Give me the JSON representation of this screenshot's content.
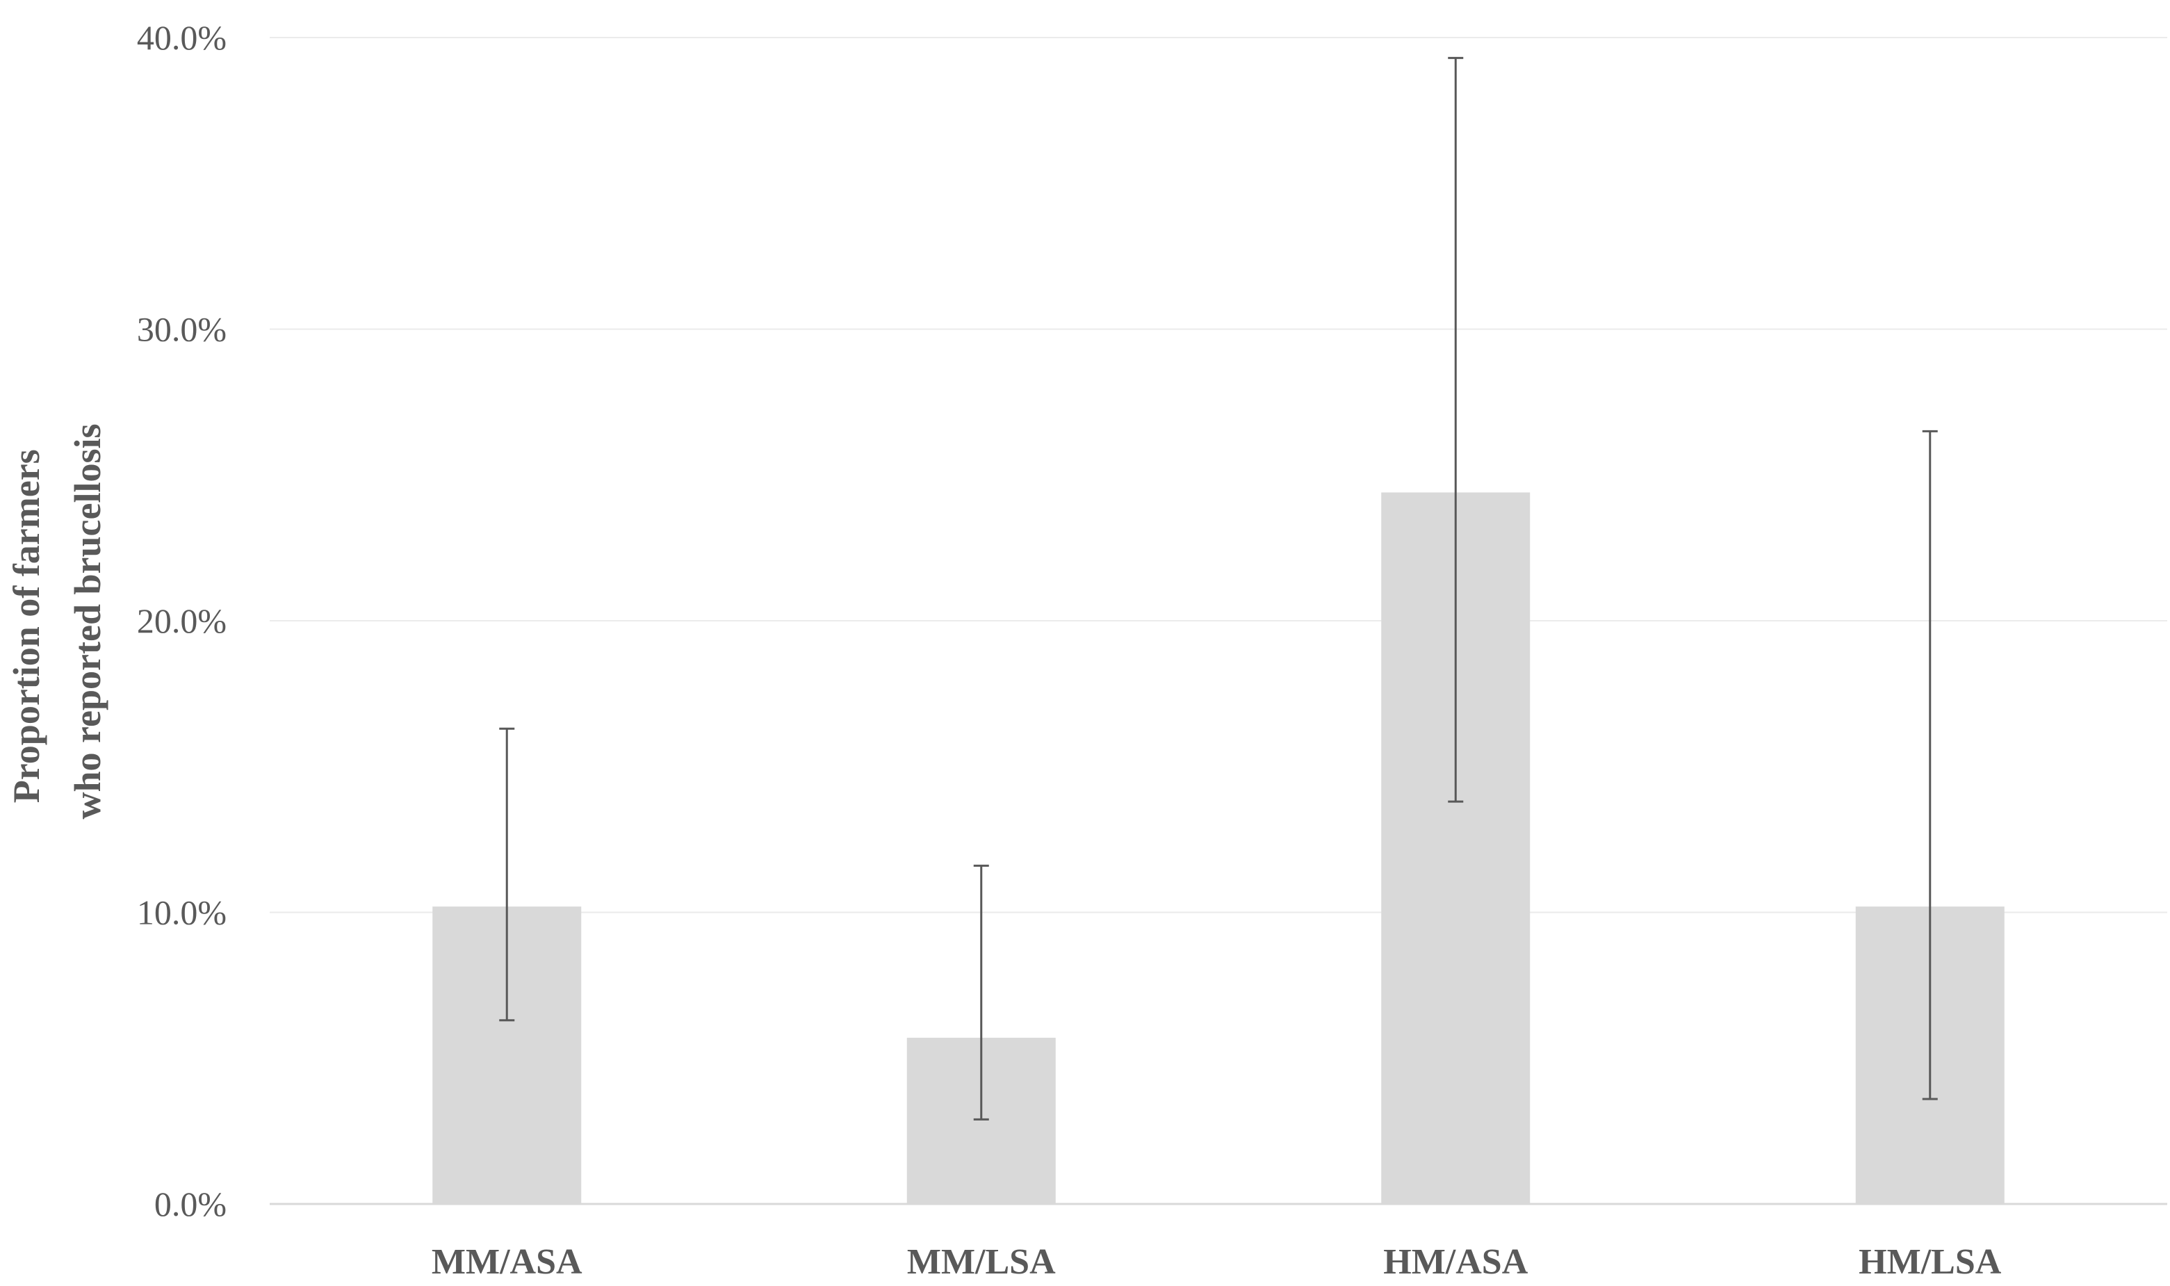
{
  "chart_data": {
    "type": "bar",
    "title": "",
    "xlabel": "",
    "ylabel_lines": [
      "Proportion of farmers",
      "who reported brucellosis"
    ],
    "categories": [
      "MM/ASA",
      "MM/LSA",
      "HM/ASA",
      "HM/LSA"
    ],
    "values": [
      10.2,
      5.7,
      24.4,
      10.2
    ],
    "error_low": [
      6.3,
      2.9,
      13.8,
      3.6
    ],
    "error_high": [
      16.3,
      11.6,
      39.3,
      26.5
    ],
    "ylim": [
      0,
      40
    ],
    "yticks": [
      0,
      10,
      20,
      30,
      40
    ],
    "ytick_labels": [
      "0.0%",
      "10.0%",
      "20.0%",
      "30.0%",
      "40.0%"
    ],
    "grid": true,
    "legend": "none",
    "colors": {
      "bar": "#d9d9d9",
      "error_bar": "#595959",
      "grid": "#ebebeb",
      "axis": "#d9d9d9",
      "text": "#595959"
    }
  }
}
